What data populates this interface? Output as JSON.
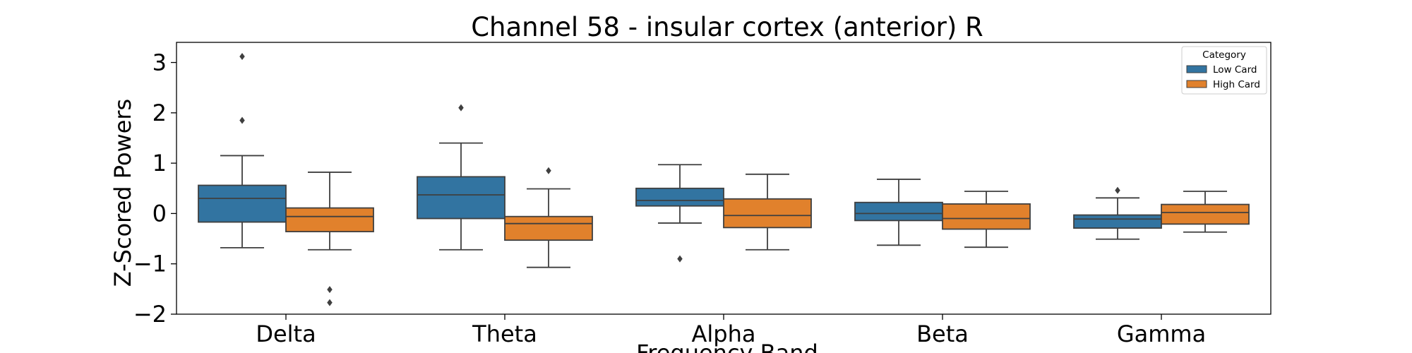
{
  "chart_data": {
    "type": "box",
    "title": "Channel 58 - insular cortex (anterior) R",
    "xlabel": "Frequency Band",
    "ylabel": "Z-Scored Powers",
    "categories": [
      "Delta",
      "Theta",
      "Alpha",
      "Beta",
      "Gamma"
    ],
    "ylim": [
      -2.0,
      3.4
    ],
    "yticks": [
      -2,
      -1,
      0,
      1,
      2,
      3
    ],
    "ytick_labels": [
      "−2",
      "−1",
      "0",
      "1",
      "2",
      "3"
    ],
    "grid": false,
    "legend": {
      "title": "Category",
      "placement": "top-right"
    },
    "series": [
      {
        "name": "Low Card",
        "color": "#3274a1",
        "boxes": [
          {
            "whisker_low": -0.68,
            "q1": -0.17,
            "median": 0.3,
            "q3": 0.56,
            "whisker_high": 1.15,
            "outliers": [
              1.85,
              3.12
            ]
          },
          {
            "whisker_low": -0.72,
            "q1": -0.1,
            "median": 0.37,
            "q3": 0.73,
            "whisker_high": 1.4,
            "outliers": [
              2.1
            ]
          },
          {
            "whisker_low": -0.19,
            "q1": 0.15,
            "median": 0.26,
            "q3": 0.5,
            "whisker_high": 0.97,
            "outliers": [
              -0.9
            ]
          },
          {
            "whisker_low": -0.63,
            "q1": -0.14,
            "median": 0.0,
            "q3": 0.22,
            "whisker_high": 0.68,
            "outliers": []
          },
          {
            "whisker_low": -0.51,
            "q1": -0.29,
            "median": -0.11,
            "q3": -0.03,
            "whisker_high": 0.31,
            "outliers": [
              0.46
            ]
          }
        ]
      },
      {
        "name": "High Card",
        "color": "#e1812c",
        "boxes": [
          {
            "whisker_low": -0.72,
            "q1": -0.36,
            "median": -0.06,
            "q3": 0.11,
            "whisker_high": 0.82,
            "outliers": [
              -1.51,
              -1.77
            ]
          },
          {
            "whisker_low": -1.07,
            "q1": -0.53,
            "median": -0.2,
            "q3": -0.06,
            "whisker_high": 0.49,
            "outliers": [
              0.85
            ]
          },
          {
            "whisker_low": -0.72,
            "q1": -0.28,
            "median": -0.04,
            "q3": 0.29,
            "whisker_high": 0.78,
            "outliers": []
          },
          {
            "whisker_low": -0.67,
            "q1": -0.31,
            "median": -0.1,
            "q3": 0.19,
            "whisker_high": 0.44,
            "outliers": []
          },
          {
            "whisker_low": -0.37,
            "q1": -0.21,
            "median": 0.02,
            "q3": 0.18,
            "whisker_high": 0.44,
            "outliers": []
          }
        ]
      }
    ]
  }
}
